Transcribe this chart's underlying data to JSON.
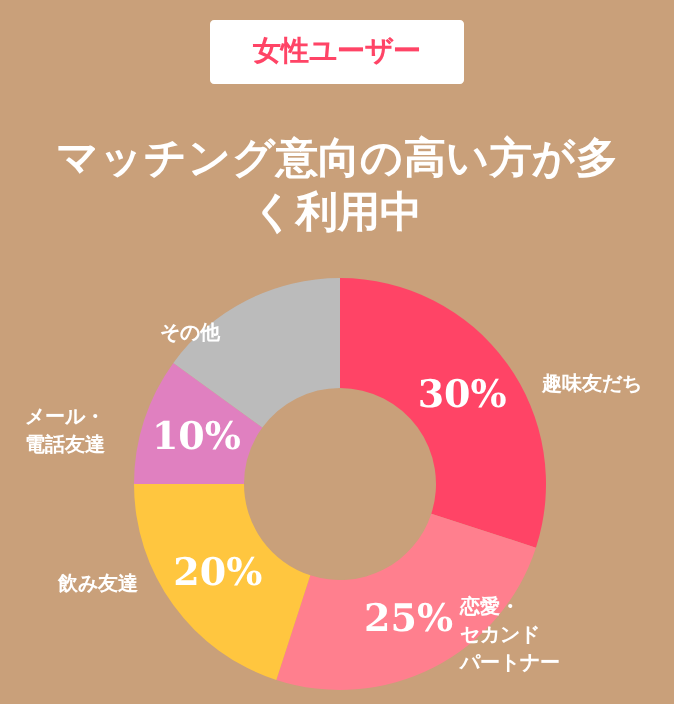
{
  "chart_data": {
    "type": "donut",
    "subtitle": "女性ユーザー",
    "title": "マッチング意向の高い方が多く利用中",
    "categories": [
      "趣味友だち",
      "恋愛・セカンドパートナー",
      "飲み友達",
      "メール・電話友達",
      "その他"
    ],
    "values": [
      30,
      25,
      20,
      10,
      15
    ],
    "value_labels": [
      "30%",
      "25%",
      "20%",
      "10%",
      null
    ],
    "colors": [
      "#ff4466",
      "#ff7f8e",
      "#ffc63f",
      "#e080c0",
      "#bbbbbb"
    ]
  }
}
